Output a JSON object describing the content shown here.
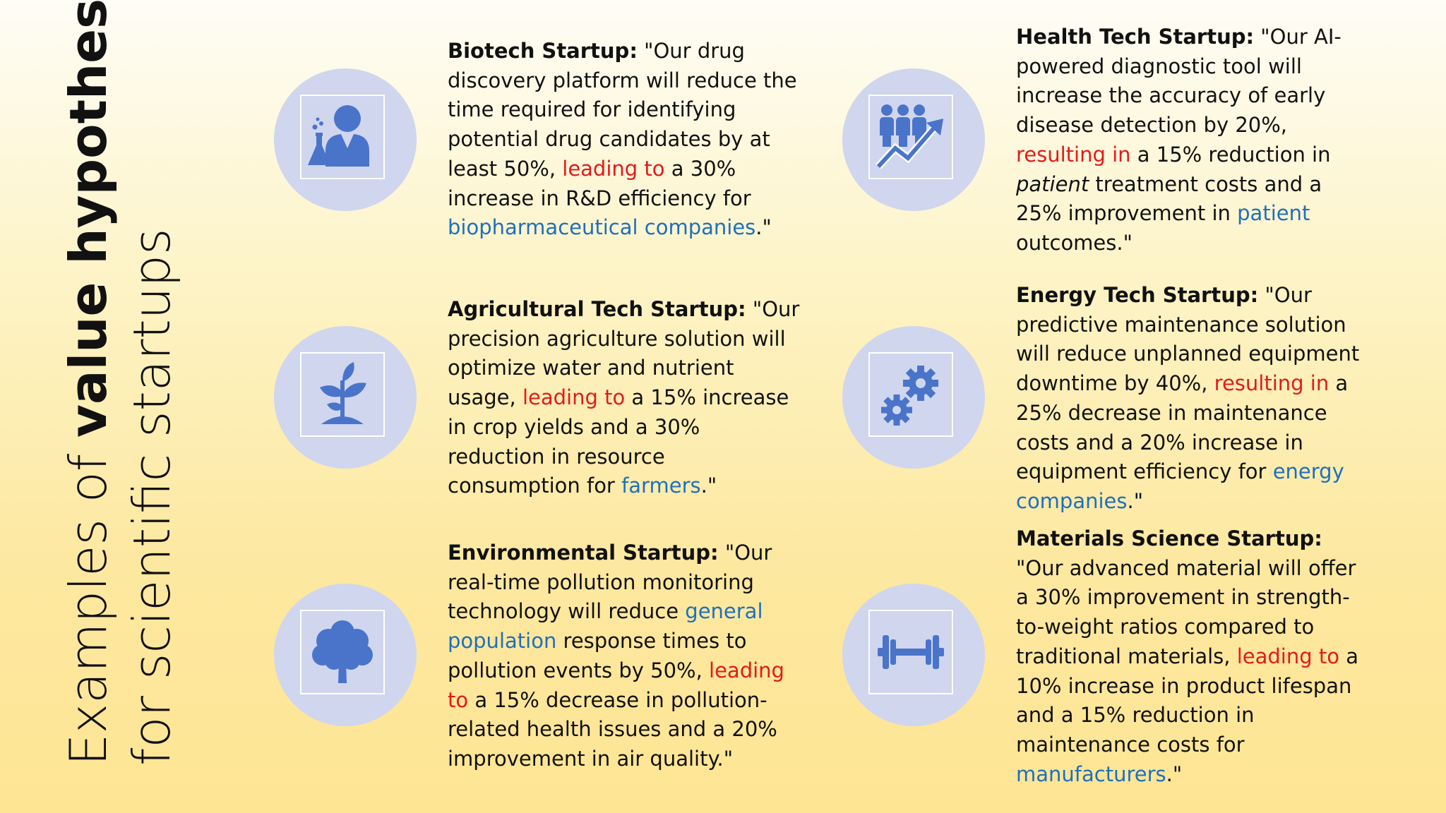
{
  "title": {
    "line1_prefix": "Examples of ",
    "line1_bold": "value hypotheses",
    "line2": "for scientific startups"
  },
  "colors": {
    "accent_red": "#e21b1b",
    "accent_blue": "#1f6fbd",
    "icon_circle": "#cfd6ee",
    "icon_fill": "#4a74c9"
  },
  "cards": {
    "biotech": {
      "icon": "scientist-flask-icon",
      "head": "Biotech Startup:",
      "t1": " \"Our drug discovery platform will reduce the time required for identifying potential drug candidates by at least 50%, ",
      "red": "leading to",
      "t2": " a 30% increase in R&D efficiency for ",
      "blue": "biopharmaceutical companies",
      "t3": ".\""
    },
    "agritech": {
      "icon": "sprout-plant-icon",
      "head": "Agricultural Tech Startup:",
      "t1": " \"Our precision agriculture solution will optimize water and nutrient usage, ",
      "red": "leading to",
      "t2": " a 15% increase in crop yields and a 30% reduction in resource consumption for ",
      "blue": "farmers",
      "t3": ".\""
    },
    "environmental": {
      "icon": "tree-icon",
      "head": "Environmental Startup:",
      "t1": " \"Our real-time pollution monitoring technology will reduce ",
      "blue": "general population",
      "t2": " response times to pollution events by 50%, ",
      "red": "leading to",
      "t3": " a 15% decrease in pollution-related health issues and a 20% improvement in air quality.\""
    },
    "healthtech": {
      "icon": "people-growth-arrow-icon",
      "head": "Health Tech Startup:",
      "t1": " \"Our AI-powered diagnostic tool will increase the accuracy of early disease detection by 20%, ",
      "red": "resulting in",
      "t2": " a 15% reduction in ",
      "ital": "patient",
      "t3": " treatment costs and a 25% improvement in ",
      "blue": "patient",
      "t4": " outcomes.\""
    },
    "energytech": {
      "icon": "gears-icon",
      "head": "Energy Tech Startup:",
      "t1": " \"Our predictive maintenance solution will reduce unplanned equipment downtime by 40%, ",
      "red": "resulting in",
      "t2": " a 25% decrease in maintenance costs and a 20% increase in equipment efficiency for ",
      "blue": "energy companies",
      "t3": ".\""
    },
    "materials": {
      "icon": "dumbbell-icon",
      "head": "Materials Science Startup:",
      "t1": " \"Our advanced material will offer a 30% improvement in strength-to-weight ratios compared to traditional materials, ",
      "red": "leading to",
      "t2": " a 10% increase in product lifespan and a 15% reduction in maintenance costs for ",
      "blue": "manufacturers",
      "t3": ".\""
    }
  }
}
